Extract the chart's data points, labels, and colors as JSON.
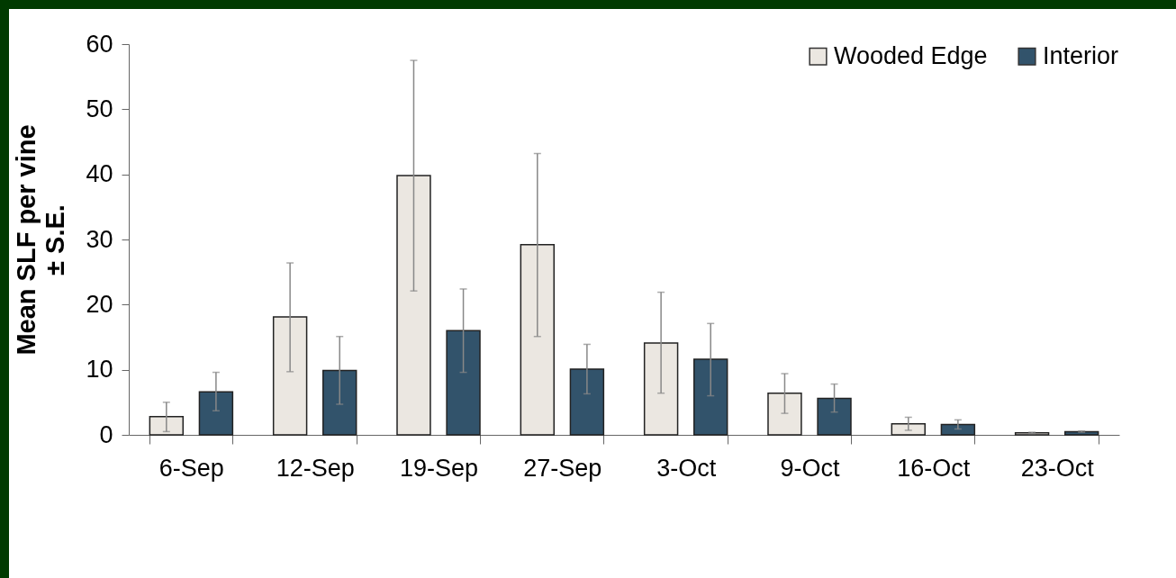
{
  "chart_data": {
    "type": "bar",
    "ylabel": "Mean SLF per vine ± S.E.",
    "categories": [
      "6-Sep",
      "12-Sep",
      "19-Sep",
      "27-Sep",
      "3-Oct",
      "9-Oct",
      "16-Oct",
      "23-Oct"
    ],
    "series": [
      {
        "name": "Wooded Edge",
        "color": "#ebe7e1",
        "values": [
          2.8,
          18.1,
          39.8,
          29.2,
          14.1,
          6.4,
          1.7,
          0.3
        ],
        "errors": [
          [
            0.5,
            5.0
          ],
          [
            9.7,
            26.4
          ],
          [
            22.1,
            57.5
          ],
          [
            15.1,
            43.2
          ],
          [
            6.4,
            21.9
          ],
          [
            3.3,
            9.4
          ],
          [
            0.7,
            2.7
          ],
          [
            0.2,
            0.4
          ]
        ]
      },
      {
        "name": "Interior",
        "color": "#32536b",
        "values": [
          6.6,
          9.9,
          16.0,
          10.1,
          11.6,
          5.6,
          1.6,
          0.5
        ],
        "errors": [
          [
            3.7,
            9.6
          ],
          [
            4.7,
            15.1
          ],
          [
            9.6,
            22.4
          ],
          [
            6.3,
            13.9
          ],
          [
            6.0,
            17.1
          ],
          [
            3.5,
            7.8
          ],
          [
            0.9,
            2.3
          ],
          [
            0.4,
            0.6
          ]
        ]
      }
    ],
    "ylim": [
      0,
      60
    ],
    "yticks": [
      0,
      10,
      20,
      30,
      40,
      50,
      60
    ],
    "grid": false,
    "legend": "top right"
  }
}
